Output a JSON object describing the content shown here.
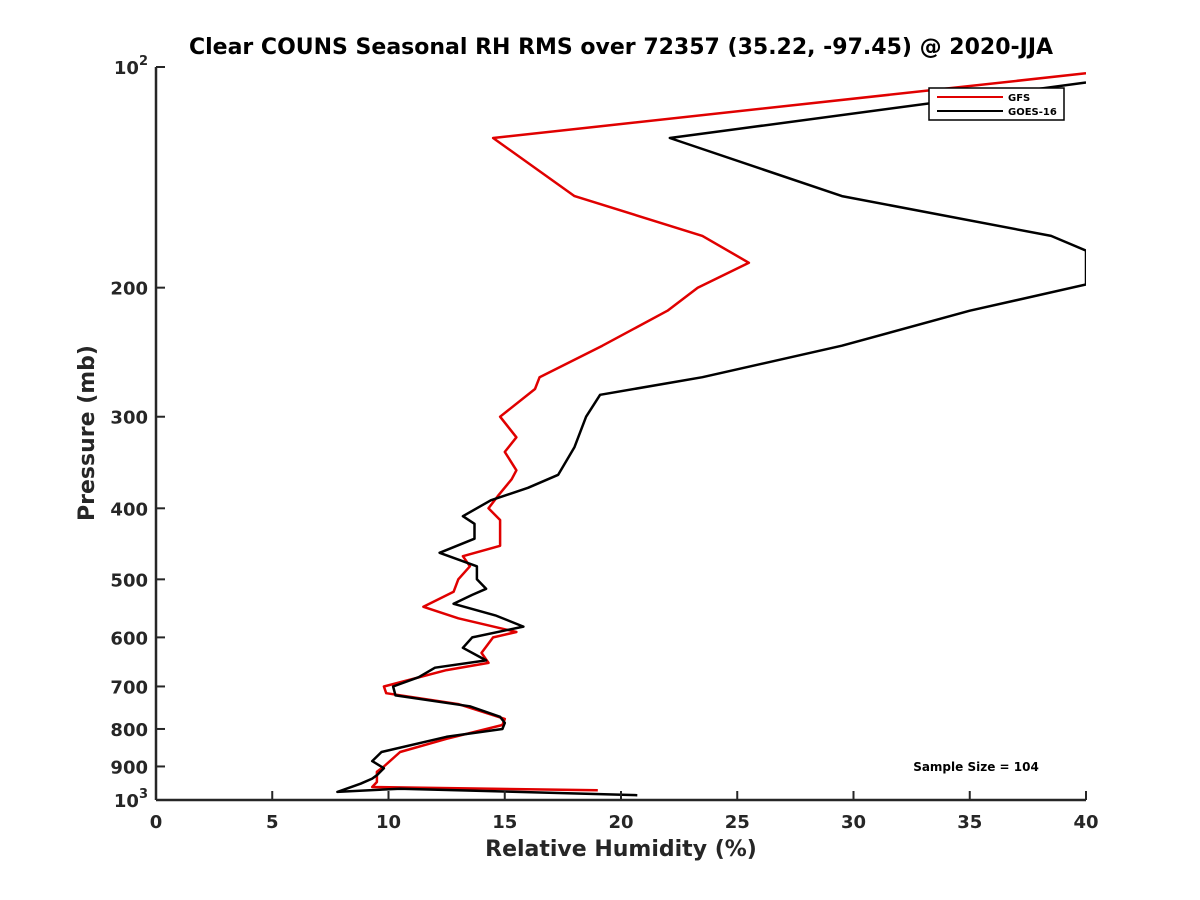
{
  "chart_data": {
    "type": "line",
    "title": "Clear COUNS Seasonal RH RMS over 72357 (35.22, -97.45) @ 2020-JJA",
    "xlabel": "Relative Humidity (%)",
    "ylabel": "Pressure (mb)",
    "xlim": [
      0,
      40
    ],
    "ylim": [
      100,
      1000
    ],
    "yscale": "log",
    "yreversed": true,
    "grid": false,
    "legend_position": "top-right",
    "x_ticks": [
      {
        "value": 0,
        "label": "0"
      },
      {
        "value": 5,
        "label": "5"
      },
      {
        "value": 10,
        "label": "10"
      },
      {
        "value": 15,
        "label": "15"
      },
      {
        "value": 20,
        "label": "20"
      },
      {
        "value": 25,
        "label": "25"
      },
      {
        "value": 30,
        "label": "30"
      },
      {
        "value": 35,
        "label": "35"
      },
      {
        "value": 40,
        "label": "40"
      }
    ],
    "y_ticks": [
      {
        "value": 100,
        "base": "10",
        "exp": "2"
      },
      {
        "value": 200,
        "label": "200"
      },
      {
        "value": 300,
        "label": "300"
      },
      {
        "value": 400,
        "label": "400"
      },
      {
        "value": 500,
        "label": "500"
      },
      {
        "value": 600,
        "label": "600"
      },
      {
        "value": 700,
        "label": "700"
      },
      {
        "value": 800,
        "label": "800"
      },
      {
        "value": 900,
        "label": "900"
      },
      {
        "value": 1000,
        "base": "10",
        "exp": "3"
      }
    ],
    "series": [
      {
        "name": "GFS",
        "color": "#e00000",
        "points": [
          [
            40.0,
            102
          ],
          [
            14.5,
            125
          ],
          [
            18.0,
            150
          ],
          [
            23.5,
            170
          ],
          [
            25.5,
            185
          ],
          [
            23.3,
            200
          ],
          [
            22.0,
            215
          ],
          [
            19.2,
            240
          ],
          [
            16.5,
            265
          ],
          [
            16.3,
            275
          ],
          [
            14.8,
            300
          ],
          [
            15.5,
            320
          ],
          [
            15.0,
            335
          ],
          [
            15.5,
            355
          ],
          [
            15.3,
            365
          ],
          [
            14.7,
            385
          ],
          [
            14.3,
            400
          ],
          [
            14.8,
            415
          ],
          [
            14.8,
            450
          ],
          [
            13.2,
            465
          ],
          [
            13.5,
            480
          ],
          [
            13.0,
            500
          ],
          [
            12.8,
            520
          ],
          [
            11.5,
            545
          ],
          [
            13.0,
            565
          ],
          [
            15.5,
            590
          ],
          [
            14.5,
            600
          ],
          [
            14.0,
            630
          ],
          [
            14.3,
            650
          ],
          [
            12.5,
            665
          ],
          [
            9.8,
            700
          ],
          [
            9.9,
            715
          ],
          [
            13.0,
            740
          ],
          [
            15.0,
            775
          ],
          [
            14.9,
            790
          ],
          [
            12.5,
            825
          ],
          [
            10.5,
            860
          ],
          [
            9.8,
            900
          ],
          [
            9.5,
            915
          ],
          [
            9.5,
            945
          ],
          [
            9.3,
            960
          ],
          [
            19.0,
            970
          ]
        ]
      },
      {
        "name": "GOES-16",
        "color": "#000000",
        "points": [
          [
            40.0,
            105
          ],
          [
            22.1,
            125
          ],
          [
            29.5,
            150
          ],
          [
            38.5,
            170
          ],
          [
            40.0,
            178
          ],
          [
            40.0,
            198
          ],
          [
            35.0,
            215
          ],
          [
            29.5,
            240
          ],
          [
            23.5,
            265
          ],
          [
            19.1,
            280
          ],
          [
            18.5,
            300
          ],
          [
            18.0,
            330
          ],
          [
            17.3,
            360
          ],
          [
            16.0,
            375
          ],
          [
            14.4,
            390
          ],
          [
            13.2,
            410
          ],
          [
            13.7,
            420
          ],
          [
            13.7,
            440
          ],
          [
            12.2,
            460
          ],
          [
            13.8,
            480
          ],
          [
            13.8,
            500
          ],
          [
            14.2,
            515
          ],
          [
            13.6,
            525
          ],
          [
            12.8,
            540
          ],
          [
            14.6,
            560
          ],
          [
            15.8,
            580
          ],
          [
            13.6,
            600
          ],
          [
            13.2,
            620
          ],
          [
            14.2,
            645
          ],
          [
            12.0,
            660
          ],
          [
            11.3,
            680
          ],
          [
            10.2,
            700
          ],
          [
            10.3,
            720
          ],
          [
            13.5,
            745
          ],
          [
            14.8,
            770
          ],
          [
            15.0,
            785
          ],
          [
            14.9,
            800
          ],
          [
            12.5,
            820
          ],
          [
            9.7,
            860
          ],
          [
            9.3,
            885
          ],
          [
            9.8,
            905
          ],
          [
            9.5,
            925
          ],
          [
            9.3,
            935
          ],
          [
            8.8,
            950
          ],
          [
            7.8,
            975
          ],
          [
            10.5,
            965
          ],
          [
            20.7,
            985
          ]
        ]
      }
    ],
    "annotation": "Sample Size = 104"
  }
}
